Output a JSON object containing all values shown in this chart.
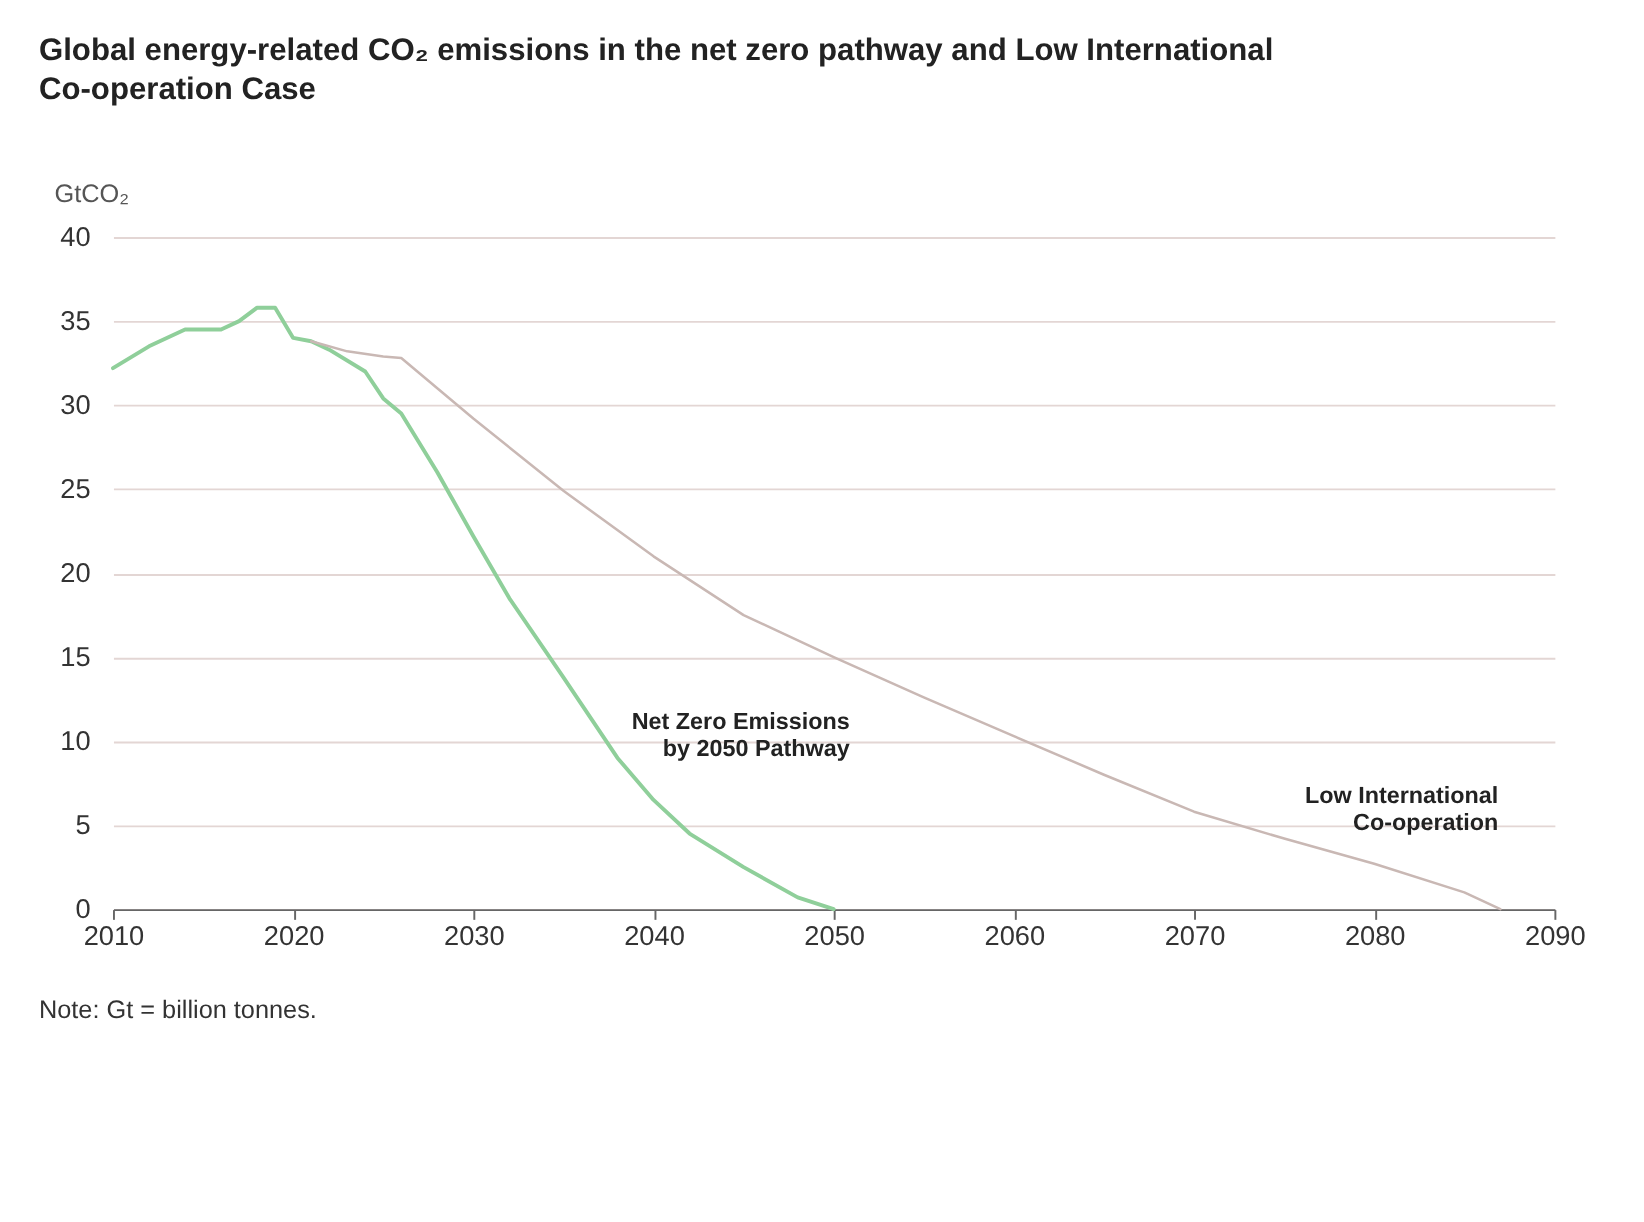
{
  "chart_data": {
    "type": "line",
    "title": "Global energy-related CO₂ emissions in the net zero pathway and Low International Co-operation Case",
    "ylabel": "GtCO₂",
    "series": [
      {
        "name": "Net Zero Emissions\nby 2050 Pathway",
        "color": "#8fcf9a",
        "x": [
          2010,
          2012,
          2014,
          2016,
          2017,
          2018,
          2019,
          2020,
          2021,
          2022,
          2024,
          2025,
          2026,
          2028,
          2030,
          2032,
          2035,
          2038,
          2040,
          2042,
          2045,
          2048,
          2050
        ],
        "values": [
          32.2,
          33.5,
          34.5,
          34.5,
          35,
          35.8,
          35.8,
          34,
          33.8,
          33.3,
          32,
          30.4,
          29.5,
          26,
          22.2,
          18.5,
          13.8,
          9,
          6.5,
          4.5,
          2.5,
          0.7,
          0
        ]
      },
      {
        "name": "Low International\nCo-operation",
        "color": "#c9b8b4",
        "x": [
          2021,
          2023,
          2025,
          2026,
          2030,
          2035,
          2040,
          2045,
          2047,
          2050,
          2055,
          2060,
          2065,
          2070,
          2075,
          2080,
          2085,
          2087
        ],
        "values": [
          33.8,
          33.2,
          32.9,
          32.8,
          29.2,
          24.9,
          21,
          17.5,
          16.5,
          15,
          12.6,
          10.3,
          8,
          5.8,
          4.2,
          2.7,
          1,
          0
        ]
      }
    ],
    "xlim": [
      2010,
      2090
    ],
    "xticks": [
      2010,
      2020,
      2030,
      2040,
      2050,
      2060,
      2070,
      2080,
      2090
    ],
    "ylim": [
      0,
      40
    ],
    "yticks": [
      0,
      5,
      10,
      15,
      20,
      25,
      30,
      35,
      40
    ],
    "grid": "y",
    "legend": false,
    "marker": "none",
    "line_style": "solid",
    "annotations": [
      "Note: Gt = billion tonnes."
    ]
  }
}
